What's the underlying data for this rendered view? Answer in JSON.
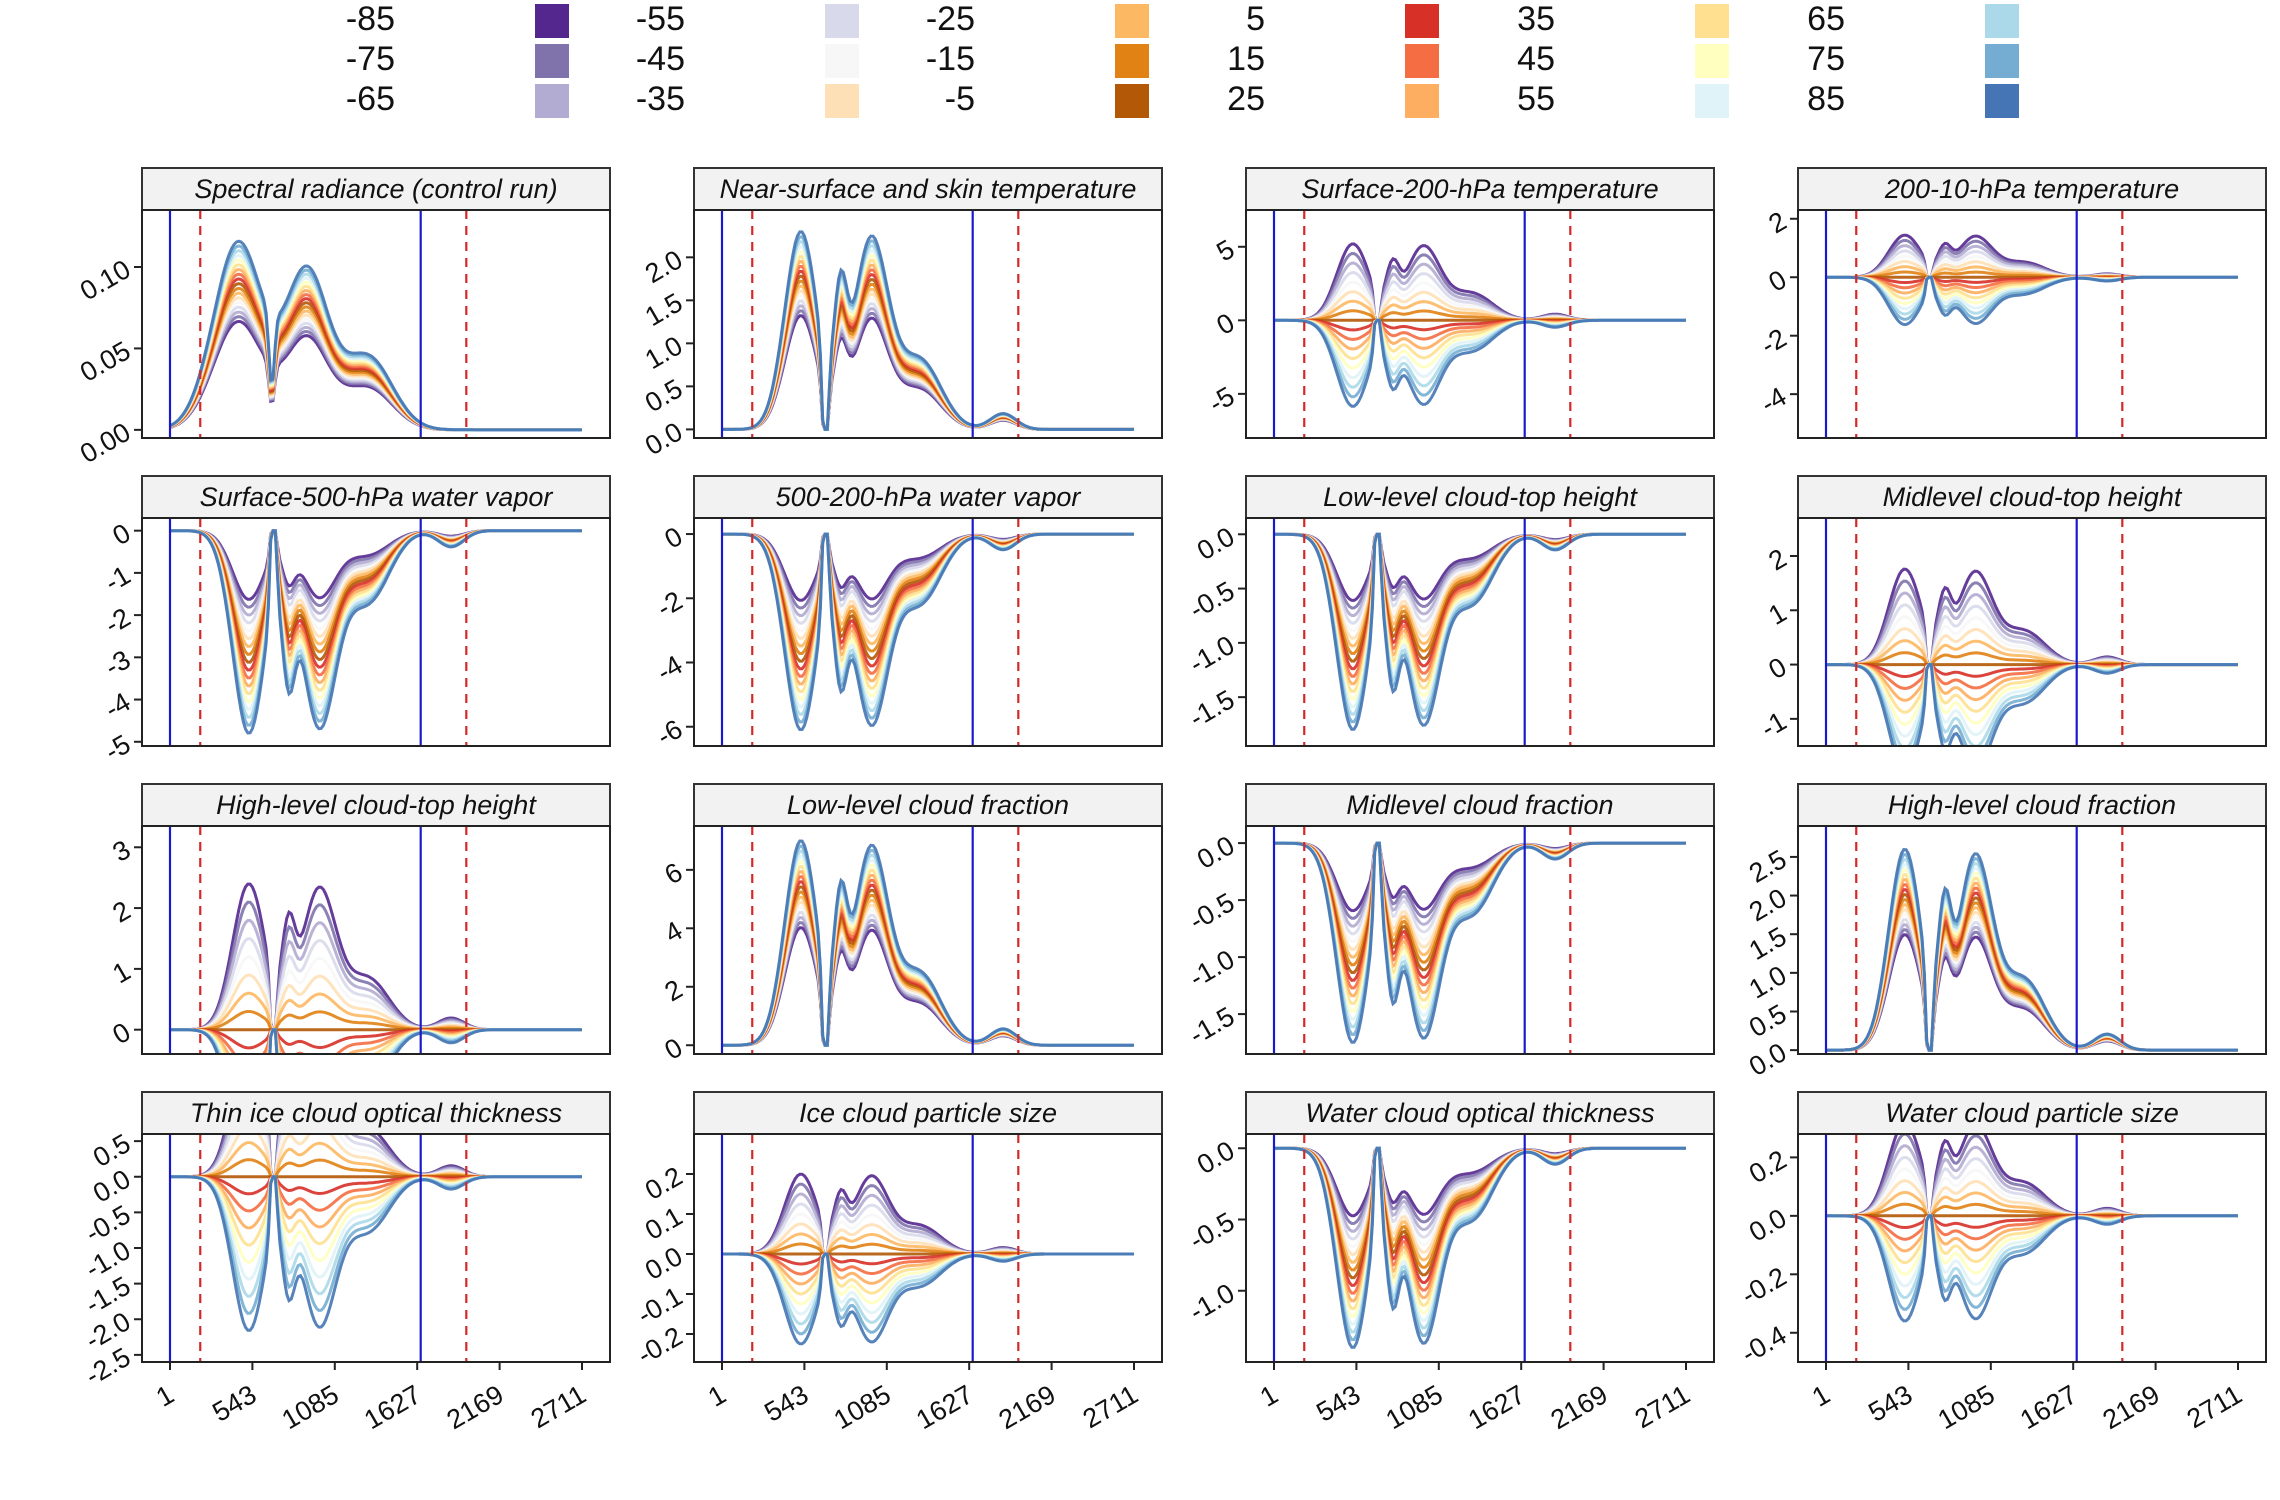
{
  "legend": {
    "entries": [
      {
        "label": "-85",
        "color": "#54278f"
      },
      {
        "label": "-75",
        "color": "#8073ac"
      },
      {
        "label": "-65",
        "color": "#b2abd2"
      },
      {
        "label": "-55",
        "color": "#d8daeb"
      },
      {
        "label": "-45",
        "color": "#f7f7f7"
      },
      {
        "label": "-35",
        "color": "#fee0b6"
      },
      {
        "label": "-25",
        "color": "#fdb863"
      },
      {
        "label": "-15",
        "color": "#e08214"
      },
      {
        "label": "-5",
        "color": "#b35806"
      },
      {
        "label": "5",
        "color": "#d73027"
      },
      {
        "label": "15",
        "color": "#f46d43"
      },
      {
        "label": "25",
        "color": "#fdae61"
      },
      {
        "label": "35",
        "color": "#fee090"
      },
      {
        "label": "45",
        "color": "#ffffbf"
      },
      {
        "label": "55",
        "color": "#e0f3f8"
      },
      {
        "label": "65",
        "color": "#abd9e9"
      },
      {
        "label": "75",
        "color": "#74add1"
      },
      {
        "label": "85",
        "color": "#4575b4"
      }
    ]
  },
  "chart_data": {
    "type": "line",
    "x_ticks": [
      "1",
      "543",
      "1085",
      "1627",
      "2169",
      "2711"
    ],
    "xlim": [
      1,
      2711
    ],
    "vlines_solid": [
      1,
      1650
    ],
    "vlines_dashed": [
      200,
      1950
    ],
    "panels": [
      {
        "title": "Spectral radiance (control run)",
        "yticks": [
          "0.00",
          "0.05",
          "0.10"
        ],
        "ytick_values": [
          0,
          0.05,
          0.1
        ],
        "ylim": [
          -0.005,
          0.135
        ],
        "shape": "radiance",
        "amp": 0.128
      },
      {
        "title": "Near-surface and skin temperature",
        "yticks": [
          "0.0",
          "0.5",
          "1.0",
          "1.5",
          "2.0"
        ],
        "ytick_values": [
          0,
          0.5,
          1.0,
          1.5,
          2.0
        ],
        "ylim": [
          -0.1,
          2.55
        ],
        "shape": "pos",
        "amp": 2.3
      },
      {
        "title": "Surface-200-hPa temperature",
        "yticks": [
          "-5",
          "0",
          "5"
        ],
        "ytick_values": [
          -5,
          0,
          5
        ],
        "ylim": [
          -8,
          7.5
        ],
        "shape": "both",
        "amp": 6.5
      },
      {
        "title": "200-10-hPa temperature",
        "yticks": [
          "-4",
          "-2",
          "0",
          "2"
        ],
        "ytick_values": [
          -4,
          -2,
          0,
          2
        ],
        "ylim": [
          -5.5,
          2.3
        ],
        "shape": "both",
        "amp": 1.8
      },
      {
        "title": "Surface-500-hPa water vapor",
        "yticks": [
          "-5",
          "-4",
          "-3",
          "-2",
          "-1",
          "0"
        ],
        "ytick_values": [
          -5,
          -4,
          -3,
          -2,
          -1,
          0
        ],
        "ylim": [
          -5.1,
          0.3
        ],
        "shape": "neg",
        "amp": 4.8
      },
      {
        "title": "500-200-hPa water vapor",
        "yticks": [
          "-6",
          "-4",
          "-2",
          "0"
        ],
        "ytick_values": [
          -6,
          -4,
          -2,
          0
        ],
        "ylim": [
          -6.6,
          0.5
        ],
        "shape": "neg",
        "amp": 6.1
      },
      {
        "title": "Low-level cloud-top height",
        "yticks": [
          "-1.5",
          "-1.0",
          "-0.5",
          "0.0"
        ],
        "ytick_values": [
          -1.5,
          -1.0,
          -0.5,
          0.0
        ],
        "ylim": [
          -1.95,
          0.15
        ],
        "shape": "neg",
        "amp": 1.8
      },
      {
        "title": "Midlevel cloud-top height",
        "yticks": [
          "-1",
          "0",
          "1",
          "2"
        ],
        "ytick_values": [
          -1,
          0,
          1,
          2
        ],
        "ylim": [
          -1.5,
          2.7
        ],
        "shape": "both",
        "amp": 2.2
      },
      {
        "title": "High-level cloud-top height",
        "yticks": [
          "0",
          "1",
          "2",
          "3"
        ],
        "ytick_values": [
          0,
          1,
          2,
          3
        ],
        "ylim": [
          -0.4,
          3.35
        ],
        "shape": "both",
        "amp": 3.0
      },
      {
        "title": "Low-level cloud fraction",
        "yticks": [
          "0",
          "2",
          "4",
          "6"
        ],
        "ytick_values": [
          0,
          2,
          4,
          6
        ],
        "ylim": [
          -0.3,
          7.5
        ],
        "shape": "pos",
        "amp": 7.0
      },
      {
        "title": "Midlevel cloud fraction",
        "yticks": [
          "-1.5",
          "-1.0",
          "-0.5",
          "0.0"
        ],
        "ytick_values": [
          -1.5,
          -1.0,
          -0.5,
          0.0
        ],
        "ylim": [
          -1.85,
          0.15
        ],
        "shape": "neg",
        "amp": 1.75
      },
      {
        "title": "High-level cloud fraction",
        "yticks": [
          "0.0",
          "0.5",
          "1.0",
          "1.5",
          "2.0",
          "2.5"
        ],
        "ytick_values": [
          0,
          0.5,
          1.0,
          1.5,
          2.0,
          2.5
        ],
        "ylim": [
          -0.05,
          2.9
        ],
        "shape": "pos",
        "amp": 2.6
      },
      {
        "title": "Thin ice cloud optical thickness",
        "yticks": [
          "-2.5",
          "-2.0",
          "-1.5",
          "-1.0",
          "-0.5",
          "0.0",
          "0.5"
        ],
        "ytick_values": [
          -2.5,
          -2.0,
          -1.5,
          -1.0,
          -0.5,
          0.0,
          0.5
        ],
        "ylim": [
          -2.6,
          0.6
        ],
        "shape": "both",
        "amp": 2.4
      },
      {
        "title": "Ice cloud particle size",
        "yticks": [
          "-0.2",
          "-0.1",
          "0.0",
          "0.1",
          "0.2"
        ],
        "ytick_values": [
          -0.2,
          -0.1,
          0.0,
          0.1,
          0.2
        ],
        "ylim": [
          -0.27,
          0.3
        ],
        "shape": "both",
        "amp": 0.25
      },
      {
        "title": "Water cloud optical thickness",
        "yticks": [
          "-1.0",
          "-0.5",
          "0.0"
        ],
        "ytick_values": [
          -1.0,
          -0.5,
          0.0
        ],
        "ylim": [
          -1.5,
          0.1
        ],
        "shape": "neg",
        "amp": 1.4
      },
      {
        "title": "Water cloud particle size",
        "yticks": [
          "-0.4",
          "-0.2",
          "0.0",
          "0.2"
        ],
        "ytick_values": [
          -0.4,
          -0.2,
          0.0,
          0.2
        ],
        "ylim": [
          -0.5,
          0.28
        ],
        "shape": "both",
        "amp": 0.4
      }
    ]
  }
}
